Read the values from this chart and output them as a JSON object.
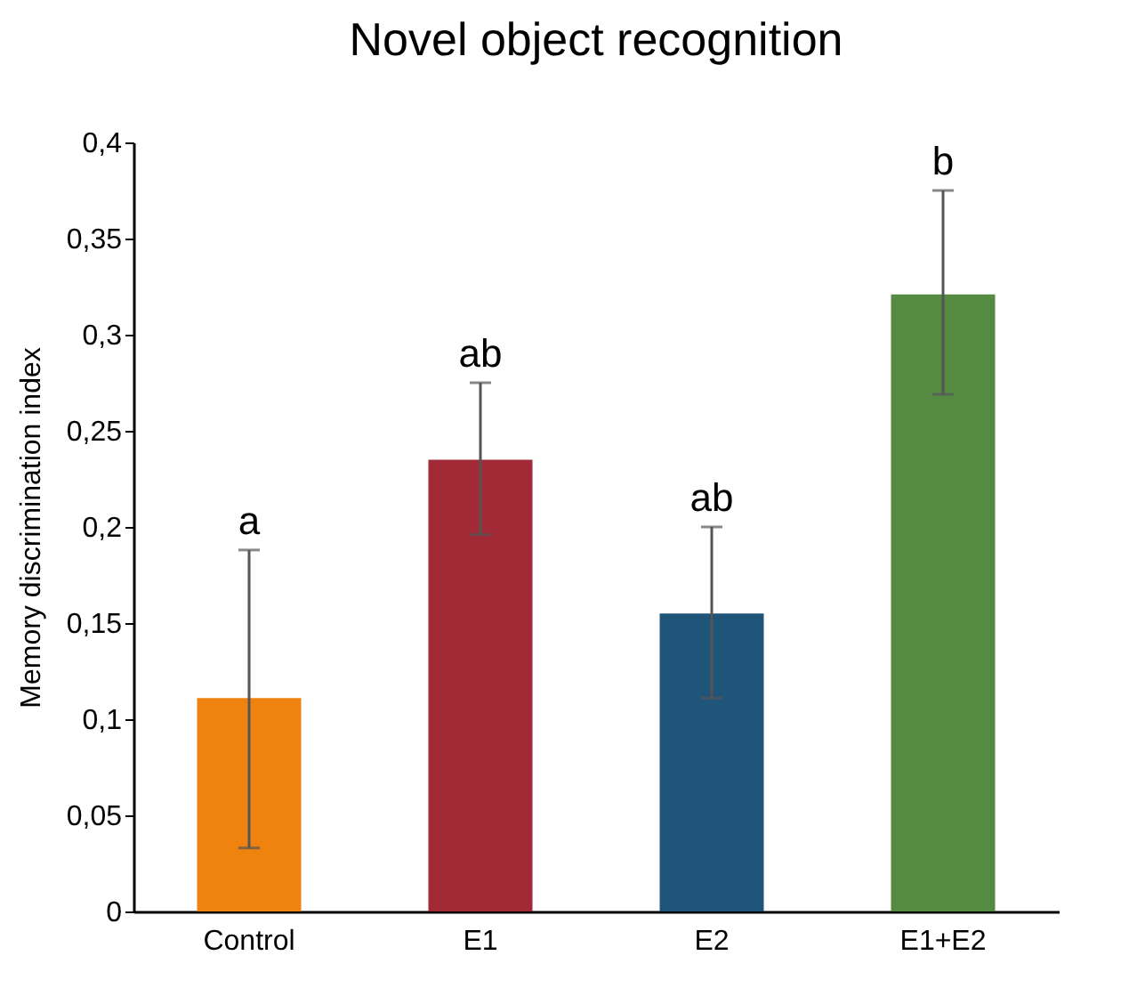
{
  "chart_data": {
    "type": "bar",
    "title": "Novel object recognition",
    "ylabel": "Memory discrimination index",
    "categories": [
      "Control",
      "E1",
      "E2",
      "E1+E2"
    ],
    "values": [
      0.111,
      0.235,
      0.155,
      0.321
    ],
    "colors": [
      "#f0820f",
      "#a12a36",
      "#1f5578",
      "#548a41"
    ],
    "errors": [
      [
        0.033,
        0.188
      ],
      [
        0.196,
        0.275
      ],
      [
        0.111,
        0.2
      ],
      [
        0.269,
        0.375
      ]
    ],
    "ylim": [
      0,
      0.4
    ],
    "yticks": [
      0,
      {
        "value": 0.05,
        "label": "0,05"
      },
      {
        "value": 0.1,
        "label": "0,1"
      },
      {
        "value": 0.15,
        "label": "0,15"
      },
      {
        "value": 0.2,
        "label": "0,2"
      },
      {
        "value": 0.25,
        "label": "0,25"
      },
      {
        "value": 0.3,
        "label": "0,3"
      },
      {
        "value": 0.35,
        "label": "0,35"
      },
      {
        "value": 0.4,
        "label": "0,4"
      }
    ],
    "annotations": [
      {
        "text": "a",
        "x": "Control",
        "y": 0.188
      },
      {
        "text": "ab",
        "x": "E1",
        "y": 0.275
      },
      {
        "text": "ab",
        "x": "E2",
        "y": 0.2
      },
      {
        "text": "b",
        "x": "E1+E2",
        "y": 0.375
      }
    ],
    "grid": false
  }
}
